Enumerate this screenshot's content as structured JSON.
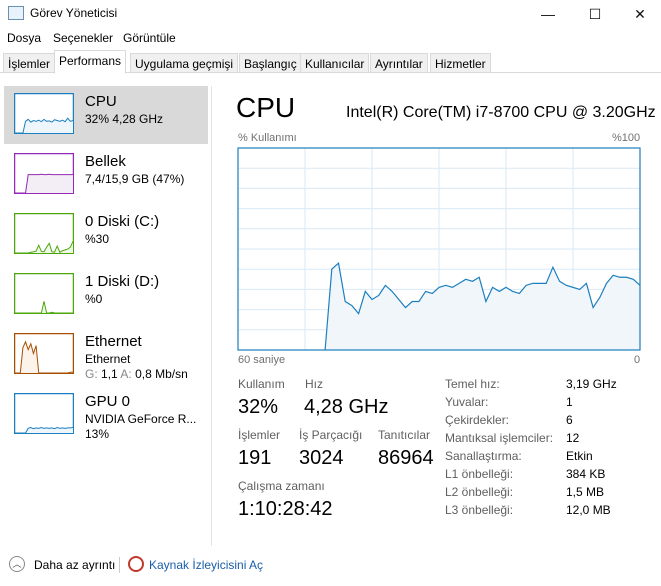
{
  "window": {
    "title": "Görev Yöneticisi",
    "minimize": "—",
    "maximize": "☐",
    "close": "✕"
  },
  "menu": [
    "Dosya",
    "Seçenekler",
    "Görüntüle"
  ],
  "tabs": [
    "İşlemler",
    "Performans",
    "Uygulama geçmişi",
    "Başlangıç",
    "Kullanıcılar",
    "Ayrıntılar",
    "Hizmetler"
  ],
  "active_tab": "Performans",
  "sidebar": [
    {
      "name": "CPU",
      "sub": "32%  4,28 GHz",
      "color": "#1c7fbf",
      "fill": "#eef5fb",
      "values": [
        0,
        0,
        0,
        0,
        30,
        35,
        28,
        32,
        30,
        33,
        29,
        35,
        30,
        31,
        28,
        34,
        32,
        30,
        33,
        29,
        38,
        30,
        32
      ]
    },
    {
      "name": "Bellek",
      "sub": "7,4/15,9 GB (47%)",
      "color": "#9528b4",
      "fill": "#f3eef5",
      "values": [
        0,
        0,
        0,
        0,
        0,
        47,
        47,
        47,
        47,
        47,
        48,
        47,
        47,
        48,
        47,
        47,
        47,
        47,
        47,
        47,
        47,
        47,
        47
      ]
    },
    {
      "name": "0 Diski (C:)",
      "sub": "%30",
      "color": "#4da60c",
      "fill": "#eff7e8",
      "values": [
        0,
        0,
        0,
        0,
        0,
        0,
        2,
        3,
        5,
        20,
        4,
        3,
        15,
        25,
        3,
        2,
        18,
        2,
        6,
        8,
        10,
        15,
        30
      ]
    },
    {
      "name": "1 Diski (D:)",
      "sub": "%0",
      "color": "#4da60c",
      "fill": "#eff7e8",
      "values": [
        0,
        0,
        0,
        0,
        0,
        0,
        0,
        0,
        0,
        0,
        0,
        30,
        0,
        0,
        2,
        0,
        0,
        0,
        0,
        0,
        0,
        0,
        0
      ]
    },
    {
      "name": "Ethernet",
      "sub": "Ethernet",
      "sub2_g": "G:",
      "sub2_gv": "1,1",
      "sub2_a": "A:",
      "sub2_av": "0,8 Mb/sn",
      "color": "#a74f01",
      "fill": "#fcf3eb",
      "values": [
        0,
        0,
        0,
        65,
        80,
        60,
        75,
        50,
        70,
        0,
        0,
        0,
        0,
        0,
        0,
        0,
        0,
        0,
        0,
        0,
        0,
        2,
        2
      ]
    },
    {
      "name": "GPU 0",
      "sub": "NVIDIA GeForce R...",
      "sub2": "13%",
      "color": "#1c7fbf",
      "fill": "#eef5fb",
      "values": [
        0,
        0,
        0,
        0,
        0,
        12,
        14,
        11,
        13,
        12,
        14,
        12,
        13,
        12,
        13,
        11,
        14,
        12,
        13,
        12,
        13,
        13,
        14
      ]
    }
  ],
  "main": {
    "title": "CPU",
    "model": "Intel(R) Core(TM) i7-8700 CPU @ 3.20GHz",
    "graph_ylabel": "% Kullanımı",
    "graph_ymax": "%100",
    "graph_xleft": "60 saniye",
    "graph_xright": "0",
    "stats": {
      "usage_label": "Kullanım",
      "usage": "32%",
      "speed_label": "Hız",
      "speed": "4,28 GHz",
      "proc_label": "İşlemler",
      "proc": "191",
      "threads_label": "İş Parçacığı",
      "threads": "3024",
      "handles_label": "Tanıtıcılar",
      "handles": "86964",
      "uptime_label": "Çalışma zamanı",
      "uptime": "1:10:28:42"
    },
    "details": [
      {
        "k": "Temel hız:",
        "v": "3,19 GHz"
      },
      {
        "k": "Yuvalar:",
        "v": "1"
      },
      {
        "k": "Çekirdekler:",
        "v": "6"
      },
      {
        "k": "Mantıksal işlemciler:",
        "v": "12"
      },
      {
        "k": "Sanallaştırma:",
        "v": "Etkin"
      },
      {
        "k": "L1 önbelleği:",
        "v": "384 KB"
      },
      {
        "k": "L2 önbelleği:",
        "v": "1,5 MB"
      },
      {
        "k": "L3 önbelleği:",
        "v": "12,0 MB"
      }
    ]
  },
  "chart_data": {
    "type": "area",
    "title": "CPU",
    "ylabel": "% Kullanımı",
    "ylim": [
      0,
      100
    ],
    "xlim_seconds": [
      60,
      0
    ],
    "grid": true,
    "color": "#1c7fbf",
    "values": [
      0,
      40,
      43,
      24,
      22,
      18,
      29,
      25,
      27,
      32,
      29,
      25,
      21,
      24,
      24,
      29,
      28,
      31,
      32,
      31,
      33,
      35,
      34,
      36,
      24,
      31,
      29,
      31,
      29,
      28,
      32,
      33,
      33,
      33,
      41,
      34,
      32,
      31,
      30,
      33,
      21,
      26,
      33,
      37,
      36,
      36,
      35,
      32
    ]
  },
  "footer": {
    "fewer": "Daha az ayrıntı",
    "monitor": "Kaynak İzleyicisini Aç"
  }
}
